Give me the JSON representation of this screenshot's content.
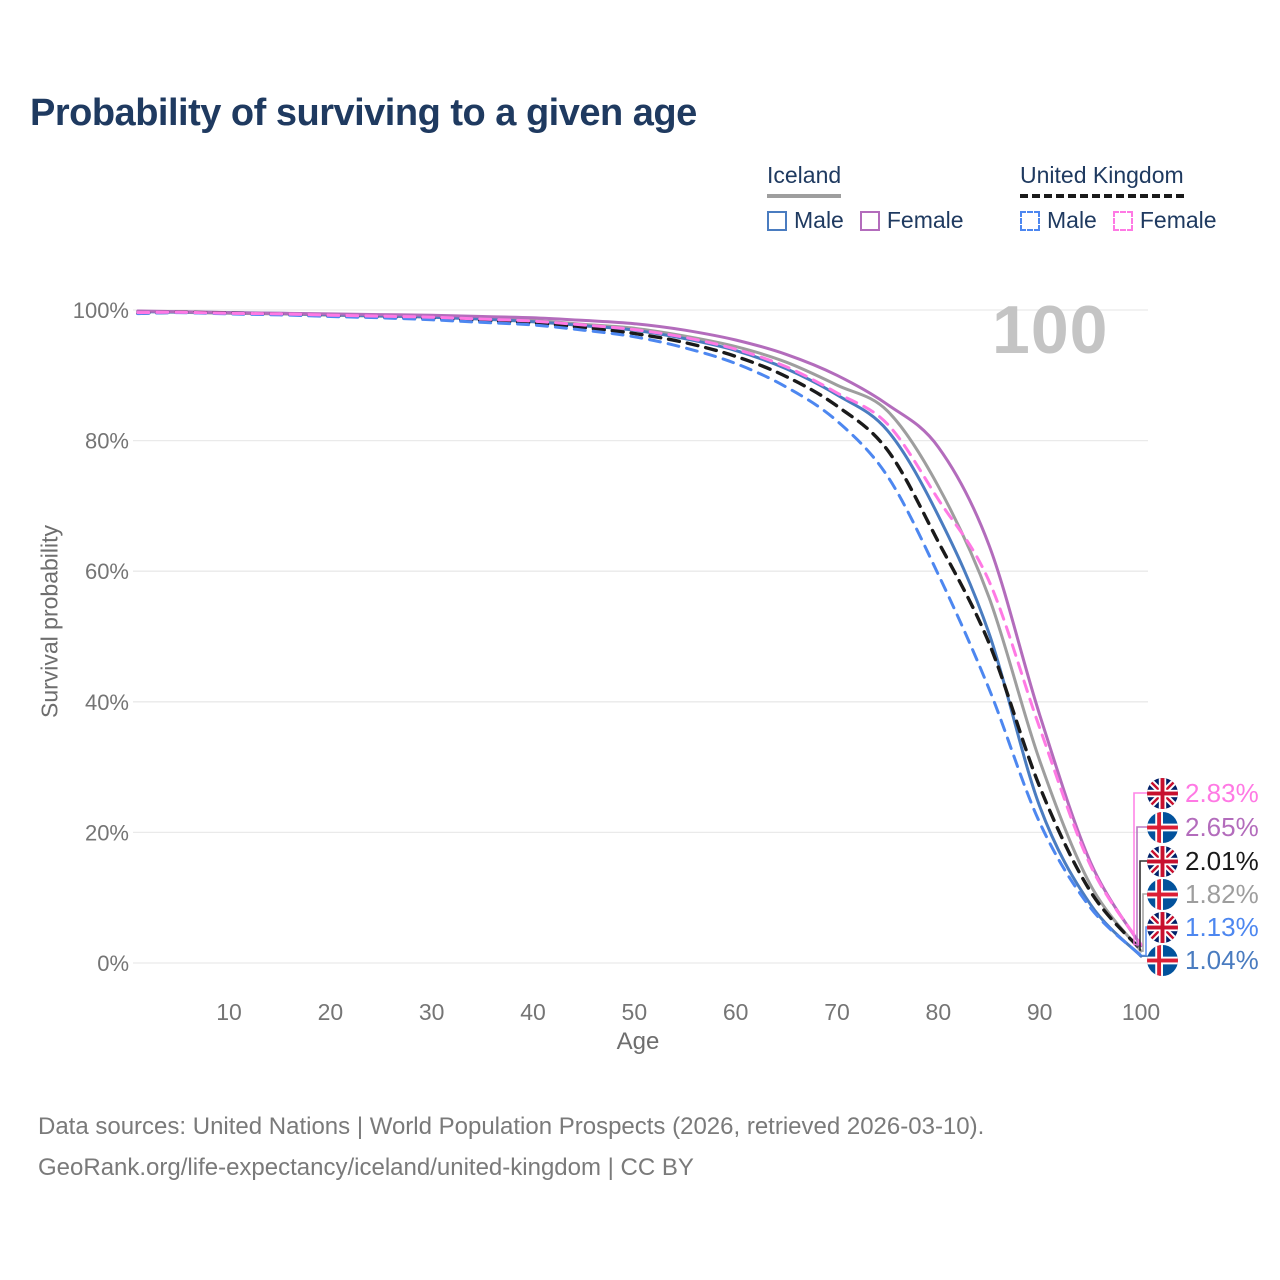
{
  "title": "Probability of surviving to a given age",
  "watermark": "100",
  "legend": {
    "groups": [
      {
        "name": "Iceland",
        "underline": "solid",
        "underline_color": "#9e9e9e",
        "items": [
          {
            "label": "Male",
            "color": "#4a7cc0",
            "dashed": false
          },
          {
            "label": "Female",
            "color": "#b36cbc",
            "dashed": false
          }
        ]
      },
      {
        "name": "United Kingdom",
        "underline": "dashed",
        "underline_color": "#1a1a1a",
        "items": [
          {
            "label": "Male",
            "color": "#4d87f0",
            "dashed": true
          },
          {
            "label": "Female",
            "color": "#ff79e4",
            "dashed": true
          }
        ]
      }
    ]
  },
  "chart_data": {
    "type": "line",
    "title": "Probability of surviving to a given age",
    "xlabel": "Age",
    "ylabel": "Survival probability",
    "xlim": [
      1,
      100
    ],
    "ylim": [
      0,
      100
    ],
    "grid": true,
    "legend_position": "top-right",
    "x_ticks": [
      10,
      20,
      30,
      40,
      50,
      60,
      70,
      80,
      90,
      100
    ],
    "y_ticks": [
      [
        0,
        "0%"
      ],
      [
        20,
        "20%"
      ],
      [
        40,
        "40%"
      ],
      [
        60,
        "60%"
      ],
      [
        80,
        "80%"
      ],
      [
        100,
        "100%"
      ]
    ],
    "series": [
      {
        "name": "Iceland Total",
        "color": "#9e9e9e",
        "dash": "solid",
        "end_value": "1.82%",
        "points": [
          [
            1,
            99.8
          ],
          [
            5,
            99.65
          ],
          [
            10,
            99.5
          ],
          [
            15,
            99.4
          ],
          [
            20,
            99.2
          ],
          [
            25,
            99.05
          ],
          [
            30,
            98.9
          ],
          [
            35,
            98.65
          ],
          [
            40,
            98.4
          ],
          [
            45,
            97.8
          ],
          [
            50,
            97.2
          ],
          [
            55,
            96.0
          ],
          [
            60,
            94.4
          ],
          [
            65,
            92.0
          ],
          [
            70,
            88.5
          ],
          [
            75,
            84.5
          ],
          [
            80,
            73.0
          ],
          [
            85,
            56.0
          ],
          [
            90,
            31.0
          ],
          [
            95,
            12.0
          ],
          [
            100,
            1.82
          ]
        ]
      },
      {
        "name": "Iceland Male",
        "color": "#4a7cc0",
        "dash": "solid",
        "end_value": "1.04%",
        "points": [
          [
            1,
            99.75
          ],
          [
            5,
            99.7
          ],
          [
            10,
            99.6
          ],
          [
            15,
            99.5
          ],
          [
            20,
            99.3
          ],
          [
            25,
            99.1
          ],
          [
            30,
            98.9
          ],
          [
            35,
            98.6
          ],
          [
            40,
            98.2
          ],
          [
            45,
            97.6
          ],
          [
            50,
            96.9
          ],
          [
            55,
            95.6
          ],
          [
            60,
            93.8
          ],
          [
            65,
            91.0
          ],
          [
            70,
            87.0
          ],
          [
            75,
            81.5
          ],
          [
            80,
            68.5
          ],
          [
            85,
            50.5
          ],
          [
            90,
            24.0
          ],
          [
            95,
            9.0
          ],
          [
            100,
            1.04
          ]
        ]
      },
      {
        "name": "Iceland Female",
        "color": "#b36cbc",
        "dash": "solid",
        "end_value": "2.65%",
        "points": [
          [
            1,
            99.85
          ],
          [
            5,
            99.75
          ],
          [
            10,
            99.6
          ],
          [
            15,
            99.5
          ],
          [
            20,
            99.4
          ],
          [
            25,
            99.3
          ],
          [
            30,
            99.2
          ],
          [
            35,
            99.0
          ],
          [
            40,
            98.8
          ],
          [
            45,
            98.4
          ],
          [
            50,
            97.9
          ],
          [
            55,
            96.9
          ],
          [
            60,
            95.4
          ],
          [
            65,
            93.2
          ],
          [
            70,
            90.0
          ],
          [
            75,
            85.5
          ],
          [
            80,
            79.0
          ],
          [
            85,
            64.0
          ],
          [
            90,
            38.0
          ],
          [
            95,
            15.5
          ],
          [
            100,
            2.65
          ]
        ]
      },
      {
        "name": "United Kingdom Total",
        "color": "#1a1a1a",
        "dash": "dashed",
        "end_value": "2.01%",
        "points": [
          [
            1,
            99.5
          ],
          [
            5,
            99.65
          ],
          [
            10,
            99.5
          ],
          [
            15,
            99.35
          ],
          [
            20,
            99.1
          ],
          [
            25,
            98.9
          ],
          [
            30,
            98.7
          ],
          [
            35,
            98.35
          ],
          [
            40,
            98.0
          ],
          [
            45,
            97.3
          ],
          [
            50,
            96.4
          ],
          [
            55,
            95.0
          ],
          [
            60,
            92.9
          ],
          [
            65,
            89.8
          ],
          [
            70,
            85.3
          ],
          [
            75,
            78.5
          ],
          [
            80,
            64.5
          ],
          [
            85,
            49.0
          ],
          [
            90,
            27.0
          ],
          [
            95,
            11.0
          ],
          [
            100,
            2.01
          ]
        ]
      },
      {
        "name": "United Kingdom Male",
        "color": "#4d87f0",
        "dash": "dashed",
        "end_value": "1.13%",
        "points": [
          [
            1,
            99.45
          ],
          [
            5,
            99.6
          ],
          [
            10,
            99.4
          ],
          [
            15,
            99.25
          ],
          [
            20,
            99.0
          ],
          [
            25,
            98.8
          ],
          [
            30,
            98.5
          ],
          [
            35,
            98.1
          ],
          [
            40,
            97.7
          ],
          [
            45,
            96.9
          ],
          [
            50,
            95.9
          ],
          [
            55,
            94.2
          ],
          [
            60,
            91.8
          ],
          [
            65,
            88.2
          ],
          [
            70,
            83.0
          ],
          [
            75,
            74.5
          ],
          [
            80,
            59.5
          ],
          [
            85,
            42.0
          ],
          [
            90,
            21.5
          ],
          [
            95,
            8.5
          ],
          [
            100,
            1.13
          ]
        ]
      },
      {
        "name": "United Kingdom Female",
        "color": "#ff79e4",
        "dash": "dashed",
        "end_value": "2.83%",
        "points": [
          [
            1,
            99.6
          ],
          [
            5,
            99.65
          ],
          [
            10,
            99.5
          ],
          [
            15,
            99.4
          ],
          [
            20,
            99.2
          ],
          [
            25,
            99.05
          ],
          [
            30,
            98.9
          ],
          [
            35,
            98.6
          ],
          [
            40,
            98.3
          ],
          [
            45,
            97.7
          ],
          [
            50,
            97.0
          ],
          [
            55,
            95.8
          ],
          [
            60,
            94.0
          ],
          [
            65,
            91.3
          ],
          [
            70,
            87.3
          ],
          [
            75,
            82.5
          ],
          [
            80,
            71.0
          ],
          [
            85,
            58.5
          ],
          [
            90,
            36.0
          ],
          [
            95,
            15.0
          ],
          [
            100,
            2.83
          ]
        ]
      }
    ]
  },
  "end_labels": [
    {
      "value": "2.83%",
      "series": "United Kingdom Female",
      "flag": "uk",
      "color": "#ff79e4"
    },
    {
      "value": "2.65%",
      "series": "Iceland Female",
      "flag": "iceland",
      "color": "#b36cbc"
    },
    {
      "value": "2.01%",
      "series": "United Kingdom Total",
      "flag": "uk",
      "color": "#1a1a1a"
    },
    {
      "value": "1.82%",
      "series": "Iceland Total",
      "flag": "iceland",
      "color": "#9e9e9e"
    },
    {
      "value": "1.13%",
      "series": "United Kingdom Male",
      "flag": "uk",
      "color": "#4d87f0"
    },
    {
      "value": "1.04%",
      "series": "Iceland Male",
      "flag": "iceland",
      "color": "#4a7cc0"
    }
  ],
  "footer": {
    "line1": "Data sources: United Nations | World Population Prospects (2026, retrieved 2026-03-10).",
    "line2": "GeoRank.org/life-expectancy/iceland/united-kingdom | CC BY"
  },
  "colors": {
    "title": "#1f3a60",
    "axis_text": "#757575",
    "axis_title": "#6e6e6e",
    "gridline": "#eaeaea",
    "watermark": "#c4c4c4",
    "footer": "#7a7a7a"
  }
}
